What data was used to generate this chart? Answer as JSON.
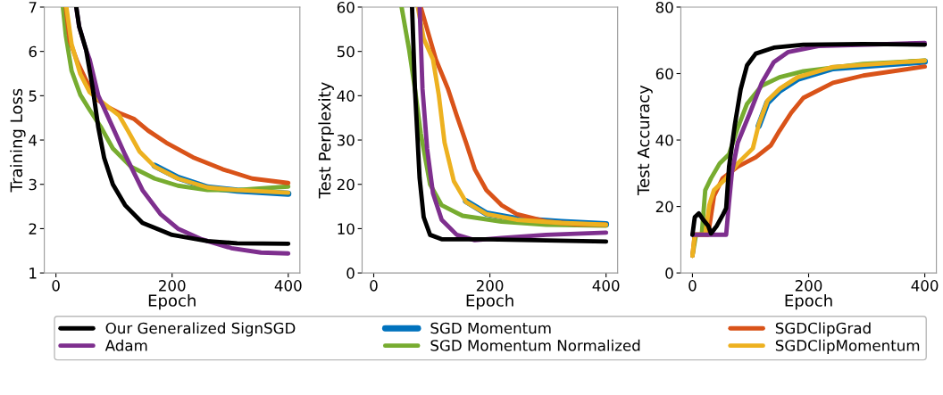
{
  "chart_data": [
    {
      "type": "line",
      "xlabel": "Epoch",
      "ylabel": "Training Loss",
      "xlim": [
        -20,
        420
      ],
      "xticks": [
        0,
        200,
        400
      ],
      "ylim": [
        1,
        7
      ],
      "yticks": [
        1,
        2,
        3,
        4,
        5,
        6,
        7
      ],
      "grid": false,
      "legend": "bottom",
      "series": [
        {
          "name": "SGD Momentum",
          "color": "#0072bd",
          "x": [
            170,
            210,
            261,
            312,
            400
          ],
          "values": [
            3.42,
            3.15,
            2.93,
            2.86,
            2.79
          ]
        },
        {
          "name": "SGD Momentum Normalized",
          "color": "#77ac30",
          "x": [
            12,
            17,
            27,
            42,
            58,
            78,
            98,
            129,
            170,
            210,
            261,
            312,
            400
          ],
          "values": [
            7,
            6.36,
            5.56,
            5.02,
            4.68,
            4.28,
            3.81,
            3.4,
            3.13,
            2.97,
            2.87,
            2.87,
            2.95
          ]
        },
        {
          "name": "SGDClipGrad",
          "color": "#d95319",
          "x": [
            17,
            24,
            37,
            52,
            68,
            88,
            109,
            134,
            159,
            190,
            236,
            287,
            338,
            400
          ],
          "values": [
            7,
            6.23,
            5.76,
            5.35,
            4.95,
            4.75,
            4.61,
            4.48,
            4.21,
            3.94,
            3.61,
            3.34,
            3.13,
            3.03
          ]
        },
        {
          "name": "SGDClipMomentum",
          "color": "#edb120",
          "x": [
            18,
            27,
            42,
            58,
            83,
            109,
            124,
            144,
            170,
            210,
            261,
            312,
            400
          ],
          "values": [
            7,
            6.16,
            5.49,
            5.08,
            4.82,
            4.55,
            4.21,
            3.74,
            3.4,
            3.13,
            2.93,
            2.87,
            2.81
          ]
        },
        {
          "name": "Adam",
          "color": "#7e2f8e",
          "x": [
            35,
            40,
            52,
            58,
            73,
            98,
            119,
            149,
            180,
            210,
            251,
            302,
            353,
            400
          ],
          "values": [
            7,
            6.56,
            6.03,
            5.82,
            5.0,
            4.28,
            3.67,
            2.87,
            2.33,
            2.0,
            1.76,
            1.56,
            1.46,
            1.44
          ]
        },
        {
          "name": "Our Generalized SignSGD",
          "color": "#000000",
          "x": [
            35,
            40,
            52,
            63,
            73,
            83,
            98,
            119,
            149,
            200,
            261,
            312,
            400
          ],
          "values": [
            7,
            6.56,
            6.03,
            5.2,
            4.28,
            3.6,
            3.0,
            2.53,
            2.13,
            1.86,
            1.72,
            1.67,
            1.66
          ]
        }
      ]
    },
    {
      "type": "line",
      "xlabel": "Epoch",
      "ylabel": "Test Perplexity",
      "xlim": [
        -20,
        420
      ],
      "xticks": [
        0,
        200,
        400
      ],
      "ylim": [
        0,
        60
      ],
      "yticks": [
        0,
        10,
        20,
        30,
        40,
        50,
        60
      ],
      "grid": false,
      "series": [
        {
          "color": "#0072bd",
          "x": [
            159,
            194,
            246,
            323,
            400
          ],
          "values": [
            16.2,
            13.4,
            12.2,
            11.5,
            11.0
          ]
        },
        {
          "color": "#77ac30",
          "x": [
            48,
            61,
            71,
            81,
            97,
            117,
            153,
            220,
            297,
            400
          ],
          "values": [
            60,
            50.3,
            41.5,
            31.5,
            20,
            15.3,
            12.9,
            11.6,
            10.9,
            10.7
          ]
        },
        {
          "color": "#d95319",
          "x": [
            81,
            92,
            107,
            128,
            143,
            159,
            174,
            194,
            220,
            246,
            297,
            349,
            400
          ],
          "values": [
            60,
            55,
            48.2,
            41.5,
            35.5,
            29.4,
            23.4,
            18.7,
            15.3,
            13.3,
            11.6,
            11,
            10.9
          ]
        },
        {
          "color": "#edb120",
          "x": [
            76,
            86,
            102,
            112,
            122,
            138,
            159,
            194,
            246,
            323,
            400
          ],
          "values": [
            60,
            52.9,
            48.2,
            40.2,
            29.4,
            20.7,
            16,
            13.3,
            12,
            11.3,
            10.9
          ]
        },
        {
          "color": "#7e2f8e",
          "x": [
            79,
            84,
            92,
            102,
            117,
            143,
            174,
            220,
            297,
            400
          ],
          "values": [
            60,
            41.5,
            28,
            18,
            12,
            8.6,
            7.4,
            7.9,
            8.6,
            9.1
          ]
        },
        {
          "color": "#000000",
          "x": [
            66,
            71,
            79,
            86,
            97,
            117,
            194,
            400
          ],
          "values": [
            60,
            41.5,
            21.4,
            12.6,
            8.6,
            7.6,
            7.6,
            7.1
          ]
        }
      ]
    },
    {
      "type": "line",
      "xlabel": "Epoch",
      "ylabel": "Test Accuracy",
      "xlim": [
        -20,
        420
      ],
      "xticks": [
        0,
        200,
        400
      ],
      "ylim": [
        0,
        80
      ],
      "yticks": [
        0,
        20,
        40,
        60,
        80
      ],
      "grid": false,
      "series": [
        {
          "color": "#0072bd",
          "x": [
            114,
            129,
            150,
            181,
            242,
            400
          ],
          "values": [
            44.2,
            51.3,
            54.9,
            58.4,
            61.6,
            63.6
          ]
        },
        {
          "color": "#77ac30",
          "x": [
            0,
            6,
            16,
            22,
            32,
            47,
            63,
            78,
            94,
            119,
            150,
            191,
            294,
            400
          ],
          "values": [
            5.2,
            11.5,
            11.5,
            24.9,
            28.5,
            33,
            35.7,
            43.7,
            50.9,
            56.3,
            58.9,
            60.7,
            62.9,
            63.9
          ]
        },
        {
          "color": "#d95319",
          "x": [
            0,
            4,
            27,
            37,
            52,
            78,
            109,
            135,
            150,
            170,
            191,
            242,
            294,
            400
          ],
          "values": [
            5.2,
            11.5,
            11.5,
            23.1,
            28.5,
            32,
            34.8,
            38.4,
            42.8,
            48.2,
            52.7,
            57.2,
            59.4,
            62.1
          ]
        },
        {
          "color": "#edb120",
          "x": [
            0,
            4,
            22,
            29,
            37,
            58,
            78,
            104,
            114,
            129,
            150,
            181,
            242,
            400
          ],
          "values": [
            5.2,
            11.5,
            11.5,
            20.4,
            24.9,
            28.5,
            33,
            37.5,
            44.6,
            51.8,
            55.4,
            58.9,
            62,
            63.9
          ]
        },
        {
          "color": "#7e2f8e",
          "x": [
            0,
            16,
            58,
            63,
            68,
            78,
            99,
            119,
            140,
            165,
            217,
            400
          ],
          "values": [
            11.5,
            11.5,
            11.5,
            21.3,
            30.3,
            39.2,
            48.2,
            57.1,
            63.4,
            66.5,
            68.3,
            69.2
          ]
        },
        {
          "color": "#000000",
          "x": [
            0,
            4,
            11,
            19,
            27,
            32,
            42,
            53,
            58,
            63,
            73,
            83,
            94,
            109,
            140,
            191,
            294,
            400
          ],
          "values": [
            11.5,
            16.8,
            17.9,
            15.9,
            14.2,
            11.9,
            14.2,
            17.7,
            19.5,
            32,
            44.6,
            55.3,
            62.5,
            66,
            67.8,
            68.7,
            68.9,
            68.7
          ]
        }
      ]
    }
  ]
}
